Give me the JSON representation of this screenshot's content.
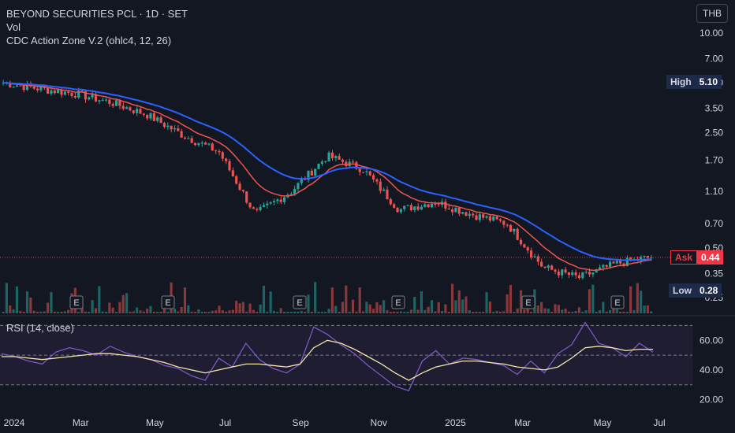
{
  "header": {
    "title": "BEYOND SECURITIES PCL · 1D · SET",
    "vol_label": "Vol",
    "indicator_label": "CDC Action Zone V.2 (ohlc4, 12, 26)",
    "currency_button": "THB"
  },
  "price_axis": {
    "ticks": [
      "10.00",
      "7.00",
      "5.00",
      "3.50",
      "2.50",
      "1.70",
      "1.10",
      "0.70",
      "0.50",
      "0.35",
      "0.25"
    ]
  },
  "tags": {
    "high_label": "High",
    "high_value": "5.10",
    "ask_label": "Ask",
    "ask_value": "0.44",
    "low_label": "Low",
    "low_value": "0.28"
  },
  "earnings_markers": [
    "E",
    "E",
    "E",
    "E",
    "E",
    "E"
  ],
  "rsi": {
    "label": "RSI (14, close)",
    "ticks": [
      "60.00",
      "40.00",
      "20.00"
    ]
  },
  "time_axis": {
    "labels": [
      "2024",
      "Mar",
      "May",
      "Jul",
      "Sep",
      "Nov",
      "2025",
      "Mar",
      "May",
      "Jul"
    ]
  },
  "chart_data": {
    "type": "candlestick",
    "title": "BEYOND SECURITIES PCL · 1D · SET",
    "y_scale": "log",
    "y_range": [
      0.22,
      12
    ],
    "x_labels": [
      "2024",
      "Mar",
      "May",
      "Jul",
      "Sep",
      "Nov",
      "2025",
      "Mar",
      "May",
      "Jul"
    ],
    "close_series": [
      {
        "date": "2024-01",
        "close": 5.0
      },
      {
        "date": "2024-02",
        "close": 4.6
      },
      {
        "date": "2024-03",
        "close": 4.3
      },
      {
        "date": "2024-04",
        "close": 3.8
      },
      {
        "date": "2024-05",
        "close": 3.2
      },
      {
        "date": "2024-06",
        "close": 2.4
      },
      {
        "date": "2024-07",
        "close": 1.9
      },
      {
        "date": "2024-08",
        "close": 0.8
      },
      {
        "date": "2024-09",
        "close": 1.1
      },
      {
        "date": "2024-09b",
        "close": 1.8
      },
      {
        "date": "2024-10",
        "close": 1.5
      },
      {
        "date": "2024-11",
        "close": 0.85
      },
      {
        "date": "2024-12",
        "close": 0.95
      },
      {
        "date": "2025-01",
        "close": 0.8
      },
      {
        "date": "2025-02",
        "close": 0.7
      },
      {
        "date": "2025-03",
        "close": 0.38
      },
      {
        "date": "2025-04",
        "close": 0.33
      },
      {
        "date": "2025-05",
        "close": 0.4
      },
      {
        "date": "2025-06",
        "close": 0.44
      }
    ],
    "high": 5.1,
    "low": 0.28,
    "ask": 0.44,
    "colors": {
      "up": "#26a69a",
      "down": "#ef5350",
      "fast_ema": "#ef5350",
      "slow_ema": "#2962ff",
      "rsi": "#7e57c2",
      "rsi_ma": "#f5e6a8"
    },
    "rsi": {
      "levels": [
        70,
        50,
        30
      ],
      "y_range": [
        15,
        75
      ],
      "values": [
        51,
        49,
        46,
        44,
        52,
        55,
        53,
        50,
        56,
        52,
        49,
        47,
        43,
        41,
        36,
        33,
        48,
        42,
        58,
        47,
        41,
        38,
        44,
        69,
        64,
        57,
        51,
        43,
        36,
        29,
        26,
        46,
        53,
        44,
        48,
        47,
        45,
        43,
        37,
        46,
        38,
        51,
        57,
        72,
        58,
        55,
        49,
        58,
        52
      ],
      "ma_values": [
        49,
        49,
        48,
        47,
        48,
        49,
        50,
        51,
        51,
        50,
        49,
        47,
        45,
        42,
        40,
        38,
        40,
        42,
        44,
        44,
        43,
        42,
        44,
        55,
        60,
        58,
        54,
        49,
        44,
        38,
        33,
        38,
        42,
        44,
        46,
        46,
        45,
        44,
        42,
        41,
        40,
        42,
        48,
        55,
        56,
        55,
        53,
        54,
        54
      ]
    }
  }
}
